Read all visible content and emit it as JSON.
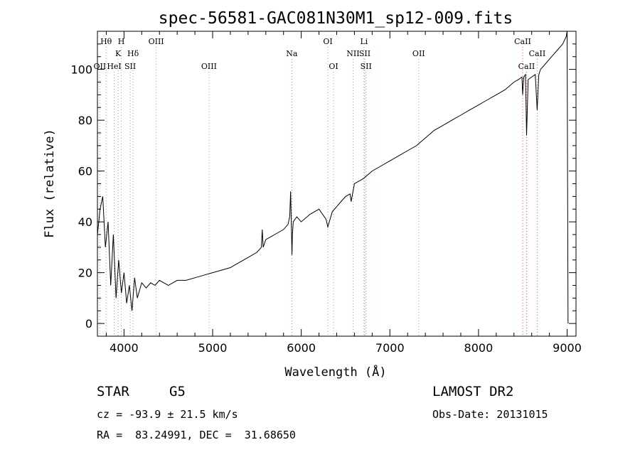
{
  "chart_data": {
    "type": "line",
    "title": "spec-56581-GAC081N30M1_sp12-009.fits",
    "xlabel": "Wavelength (Å)",
    "ylabel": "Flux (relative)",
    "xlim": [
      3700,
      9100
    ],
    "ylim": [
      -5,
      115
    ],
    "xticks": [
      4000,
      5000,
      6000,
      7000,
      8000,
      9000
    ],
    "yticks": [
      0,
      20,
      40,
      60,
      80,
      100
    ],
    "grid": false,
    "series": [
      {
        "x": [
          3700,
          3730,
          3760,
          3790,
          3820,
          3850,
          3880,
          3910,
          3940,
          3970,
          4000,
          4030,
          4060,
          4090,
          4120,
          4150,
          4200,
          4250,
          4300,
          4350,
          4400,
          4450,
          4500,
          4600,
          4700,
          4800,
          4900,
          5000,
          5100,
          5200,
          5300,
          5400,
          5500,
          5550,
          5560,
          5570,
          5600,
          5700,
          5800,
          5850,
          5870,
          5880,
          5895,
          5900,
          5910,
          5950,
          6000,
          6100,
          6200,
          6280,
          6300,
          6350,
          6400,
          6450,
          6500,
          6550,
          6563,
          6600,
          6700,
          6800,
          6900,
          7000,
          7100,
          7200,
          7300,
          7400,
          7500,
          7600,
          7700,
          7800,
          7900,
          8000,
          8100,
          8200,
          8300,
          8400,
          8450,
          8490,
          8498,
          8510,
          8530,
          8542,
          8560,
          8600,
          8640,
          8662,
          8680,
          8700,
          8750,
          8800,
          8850,
          8900,
          8950,
          8990,
          9000,
          9010
        ],
        "y": [
          35,
          45,
          50,
          30,
          40,
          15,
          35,
          10,
          25,
          12,
          20,
          8,
          15,
          5,
          18,
          10,
          16,
          14,
          16,
          15,
          17,
          16,
          15,
          17,
          17,
          18,
          19,
          20,
          21,
          22,
          24,
          26,
          28,
          30,
          37,
          30,
          33,
          35,
          37,
          39,
          42,
          52,
          27,
          35,
          40,
          42,
          40,
          43,
          45,
          41,
          38,
          44,
          46,
          48,
          50,
          51,
          48,
          55,
          57,
          60,
          62,
          64,
          66,
          68,
          70,
          73,
          76,
          78,
          80,
          82,
          84,
          86,
          88,
          90,
          92,
          95,
          96,
          97,
          90,
          97,
          98,
          74,
          96,
          97,
          98,
          84,
          98,
          100,
          102,
          104,
          106,
          108,
          110,
          113,
          115,
          0
        ]
      }
    ],
    "lines": [
      {
        "name": "Hθ",
        "wavelength": 3798,
        "color": "#999999",
        "row": 1
      },
      {
        "name": "OII",
        "wavelength": 3727,
        "color": "#999999",
        "row": 3
      },
      {
        "name": "K",
        "wavelength": 3934,
        "color": "#999999",
        "row": 2
      },
      {
        "name": "H",
        "wavelength": 3969,
        "color": "#999999",
        "row": 1
      },
      {
        "name": "HeI",
        "wavelength": 3889,
        "color": "#999999",
        "row": 3
      },
      {
        "name": "SII",
        "wavelength": 4070,
        "color": "#999999",
        "row": 3
      },
      {
        "name": "Hδ",
        "wavelength": 4102,
        "color": "#999999",
        "row": 2
      },
      {
        "name": "OIII",
        "wavelength": 4363,
        "color": "#999999",
        "row": 1
      },
      {
        "name": "OIII",
        "wavelength": 4959,
        "color": "#999999",
        "row": 3
      },
      {
        "name": "Na",
        "wavelength": 5893,
        "color": "#e06060",
        "row": 2
      },
      {
        "name": "OI",
        "wavelength": 6300,
        "color": "#999999",
        "row": 1
      },
      {
        "name": "OI",
        "wavelength": 6364,
        "color": "#999999",
        "row": 3
      },
      {
        "name": "NII",
        "wavelength": 6584,
        "color": "#999999",
        "row": 2
      },
      {
        "name": "Li",
        "wavelength": 6708,
        "color": "#e06060",
        "row": 1
      },
      {
        "name": "SII",
        "wavelength": 6717,
        "color": "#999999",
        "row": 2
      },
      {
        "name": "SII",
        "wavelength": 6731,
        "color": "#999999",
        "row": 3
      },
      {
        "name": "OII",
        "wavelength": 7325,
        "color": "#999999",
        "row": 2
      },
      {
        "name": "CaII",
        "wavelength": 8498,
        "color": "#e06060",
        "row": 1
      },
      {
        "name": "CaII",
        "wavelength": 8542,
        "color": "#e06060",
        "row": 3
      },
      {
        "name": "CaII",
        "wavelength": 8662,
        "color": "#e06060",
        "row": 2
      }
    ]
  },
  "info": {
    "class": "STAR",
    "subclass": "G5",
    "redshift": "cz = -93.9 ± 21.5 km/s",
    "coords": "RA =  83.24991, DEC =  31.68650",
    "release": "LAMOST DR2",
    "obsdate": "Obs-Date: 20131015"
  }
}
